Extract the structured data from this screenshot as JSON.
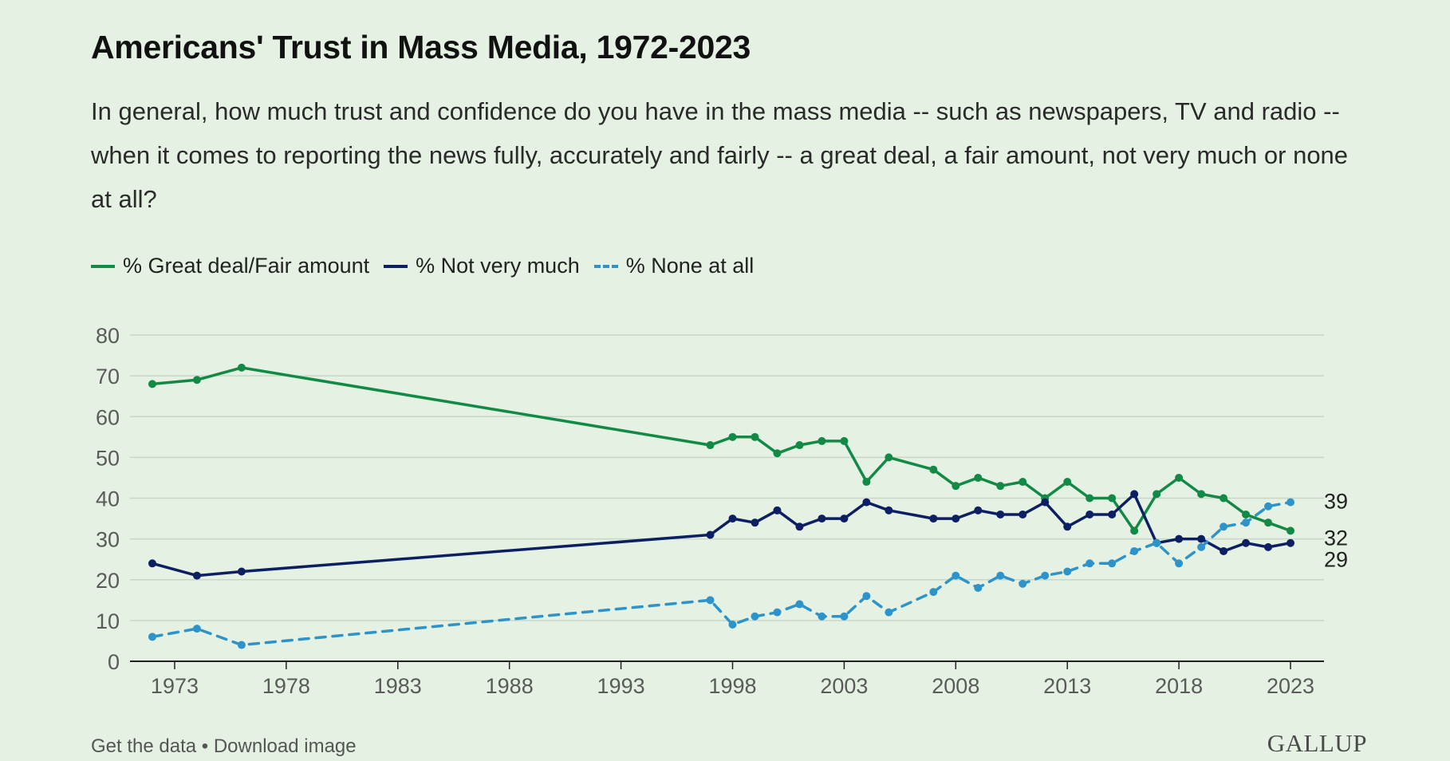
{
  "page": {
    "title": "Americans' Trust in Mass Media, 1972-2023",
    "subtitle": "In general, how much trust and confidence do you have in the mass media -- such as newspapers, TV and radio -- when it comes to reporting the news fully, accurately and fairly -- a great deal, a fair amount, not very much or none at all?",
    "footer": {
      "get_data": "Get the data",
      "separator": " • ",
      "download": "Download image"
    },
    "brand": "GALLUP"
  },
  "colors": {
    "background": "#e5f2e3",
    "great_deal": "#128a46",
    "not_very_much": "#0d1f63",
    "none_at_all": "#2e93c9",
    "grid": "#c9d6c7",
    "axis": "#222222",
    "tick_text": "#5a5a5a"
  },
  "chart_data": {
    "type": "line",
    "x_axis": {
      "min": 1971,
      "max": 2024.5,
      "ticks": [
        1973,
        1978,
        1983,
        1988,
        1993,
        1998,
        2003,
        2008,
        2013,
        2018,
        2023
      ]
    },
    "y_axis": {
      "min": 0,
      "max": 80,
      "ticks": [
        0,
        10,
        20,
        30,
        40,
        50,
        60,
        70,
        80
      ]
    },
    "grid": true,
    "legend_position": "top-left",
    "end_labels": [
      "39",
      "32",
      "29"
    ],
    "series": [
      {
        "name": "% Great deal/Fair amount",
        "style": "solid",
        "points": [
          [
            1972,
            68
          ],
          [
            1974,
            69
          ],
          [
            1976,
            72
          ],
          [
            1997,
            53
          ],
          [
            1998,
            55
          ],
          [
            1999,
            55
          ],
          [
            2000,
            51
          ],
          [
            2001,
            53
          ],
          [
            2002,
            54
          ],
          [
            2003,
            54
          ],
          [
            2004,
            44
          ],
          [
            2005,
            50
          ],
          [
            2007,
            47
          ],
          [
            2008,
            43
          ],
          [
            2009,
            45
          ],
          [
            2010,
            43
          ],
          [
            2011,
            44
          ],
          [
            2012,
            40
          ],
          [
            2013,
            44
          ],
          [
            2014,
            40
          ],
          [
            2015,
            40
          ],
          [
            2016,
            32
          ],
          [
            2017,
            41
          ],
          [
            2018,
            45
          ],
          [
            2019,
            41
          ],
          [
            2020,
            40
          ],
          [
            2021,
            36
          ],
          [
            2022,
            34
          ],
          [
            2023,
            32
          ]
        ]
      },
      {
        "name": "% Not very much",
        "style": "solid",
        "points": [
          [
            1972,
            24
          ],
          [
            1974,
            21
          ],
          [
            1976,
            22
          ],
          [
            1997,
            31
          ],
          [
            1998,
            35
          ],
          [
            1999,
            34
          ],
          [
            2000,
            37
          ],
          [
            2001,
            33
          ],
          [
            2002,
            35
          ],
          [
            2003,
            35
          ],
          [
            2004,
            39
          ],
          [
            2005,
            37
          ],
          [
            2007,
            35
          ],
          [
            2008,
            35
          ],
          [
            2009,
            37
          ],
          [
            2010,
            36
          ],
          [
            2011,
            36
          ],
          [
            2012,
            39
          ],
          [
            2013,
            33
          ],
          [
            2014,
            36
          ],
          [
            2015,
            36
          ],
          [
            2016,
            41
          ],
          [
            2017,
            29
          ],
          [
            2018,
            30
          ],
          [
            2019,
            30
          ],
          [
            2020,
            27
          ],
          [
            2021,
            29
          ],
          [
            2022,
            28
          ],
          [
            2023,
            29
          ]
        ]
      },
      {
        "name": "% None at all",
        "style": "dashed",
        "points": [
          [
            1972,
            6
          ],
          [
            1974,
            8
          ],
          [
            1976,
            4
          ],
          [
            1997,
            15
          ],
          [
            1998,
            9
          ],
          [
            1999,
            11
          ],
          [
            2000,
            12
          ],
          [
            2001,
            14
          ],
          [
            2002,
            11
          ],
          [
            2003,
            11
          ],
          [
            2004,
            16
          ],
          [
            2005,
            12
          ],
          [
            2007,
            17
          ],
          [
            2008,
            21
          ],
          [
            2009,
            18
          ],
          [
            2010,
            21
          ],
          [
            2011,
            19
          ],
          [
            2012,
            21
          ],
          [
            2013,
            22
          ],
          [
            2014,
            24
          ],
          [
            2015,
            24
          ],
          [
            2016,
            27
          ],
          [
            2017,
            29
          ],
          [
            2018,
            24
          ],
          [
            2019,
            28
          ],
          [
            2020,
            33
          ],
          [
            2021,
            34
          ],
          [
            2022,
            38
          ],
          [
            2023,
            39
          ]
        ]
      }
    ]
  }
}
